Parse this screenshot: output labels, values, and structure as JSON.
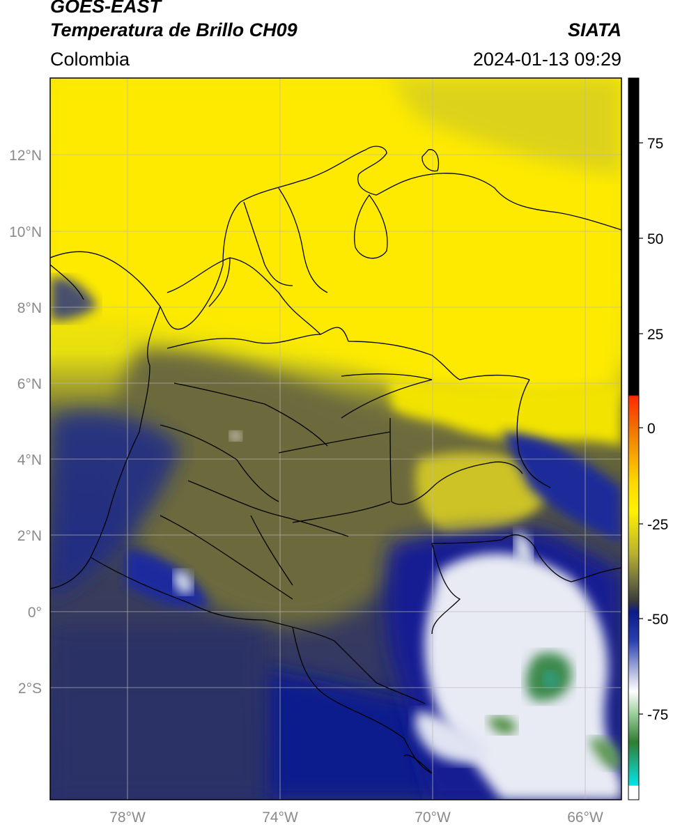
{
  "header": {
    "satellite": "GOES-EAST",
    "product": "Temperatura de Brillo CH09",
    "agency": "SIATA",
    "region": "Colombia",
    "datetime": "2024-01-13 09:29"
  },
  "map": {
    "lat_ticks": [
      "12°N",
      "10°N",
      "8°N",
      "6°N",
      "4°N",
      "2°N",
      "0°",
      "2°S"
    ],
    "lon_ticks": [
      "78°W",
      "74°W",
      "70°W",
      "66°W"
    ],
    "extent": {
      "lon_min": -80,
      "lon_max": -65,
      "lat_min": -5,
      "lat_max": 14
    }
  },
  "colorbar": {
    "ticks": [
      "75",
      "50",
      "25",
      "0",
      "-25",
      "-50",
      "-75"
    ],
    "colors": {
      "warm": "#000000",
      "red": "#e53010",
      "orange": "#f08a00",
      "yellow": "#fff200",
      "olive": "#8a8a3a",
      "gray": "#4a4a4a",
      "navy": "#0c1a8a",
      "white": "#ffffff",
      "green": "#2e7d32",
      "teal": "#1bb89a",
      "cyan": "#00e0e0"
    }
  }
}
